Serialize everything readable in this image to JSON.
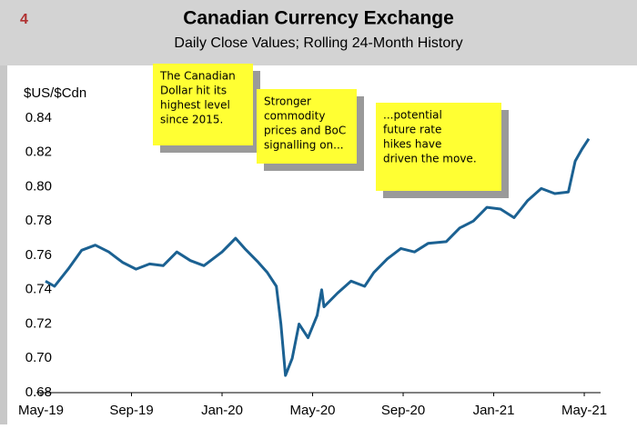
{
  "chart_data": {
    "type": "line",
    "page_number": "4",
    "title": "Canadian Currency Exchange",
    "subtitle": "Daily Close Values; Rolling 24-Month History",
    "y_label": "$US/$Cdn",
    "color": "#1b6192",
    "x": [
      0.2,
      0.6,
      1.2,
      1.8,
      2.4,
      3.0,
      3.6,
      4.2,
      4.8,
      5.4,
      6.0,
      6.6,
      7.2,
      8.0,
      8.6,
      9.0,
      9.6,
      10.0,
      10.4,
      10.6,
      10.8,
      11.1,
      11.4,
      11.8,
      12.2,
      12.4,
      12.5,
      13.1,
      13.7,
      14.3,
      14.7,
      15.3,
      15.9,
      16.5,
      17.1,
      17.9,
      18.5,
      19.1,
      19.7,
      20.3,
      20.9,
      21.5,
      22.1,
      22.7,
      23.3,
      23.6,
      23.9,
      24.2
    ],
    "values": [
      0.745,
      0.742,
      0.752,
      0.763,
      0.766,
      0.762,
      0.756,
      0.752,
      0.755,
      0.754,
      0.762,
      0.757,
      0.754,
      0.762,
      0.77,
      0.764,
      0.756,
      0.75,
      0.742,
      0.72,
      0.69,
      0.7,
      0.72,
      0.712,
      0.725,
      0.74,
      0.73,
      0.738,
      0.745,
      0.742,
      0.75,
      0.758,
      0.764,
      0.762,
      0.767,
      0.768,
      0.776,
      0.78,
      0.788,
      0.787,
      0.782,
      0.792,
      0.799,
      0.796,
      0.797,
      0.815,
      0.822,
      0.828
    ],
    "xlim": [
      0,
      24.4
    ],
    "xticks": [
      {
        "value": 0,
        "label": "May-19"
      },
      {
        "value": 4,
        "label": "Sep-19"
      },
      {
        "value": 8,
        "label": "Jan-20"
      },
      {
        "value": 12,
        "label": "May-20"
      },
      {
        "value": 16,
        "label": "Sep-20"
      },
      {
        "value": 20,
        "label": "Jan-21"
      },
      {
        "value": 24,
        "label": "May-21"
      }
    ],
    "ylim": [
      0.68,
      0.84
    ],
    "yticks": [
      {
        "value": 0.68,
        "label": "0.68"
      },
      {
        "value": 0.7,
        "label": "0.70"
      },
      {
        "value": 0.72,
        "label": "0.72"
      },
      {
        "value": 0.74,
        "label": "0.74"
      },
      {
        "value": 0.76,
        "label": "0.76"
      },
      {
        "value": 0.78,
        "label": "0.78"
      },
      {
        "value": 0.8,
        "label": "0.80"
      },
      {
        "value": 0.82,
        "label": "0.82"
      },
      {
        "value": 0.84,
        "label": "0.84"
      }
    ],
    "annotations": [
      [
        "The Canadian",
        "Dollar hit its",
        "highest level",
        "since 2015."
      ],
      [
        "Stronger",
        "commodity",
        "prices and BoC",
        "signalling on..."
      ],
      [
        "...potential",
        "future rate",
        "hikes have",
        "driven the move."
      ]
    ]
  }
}
